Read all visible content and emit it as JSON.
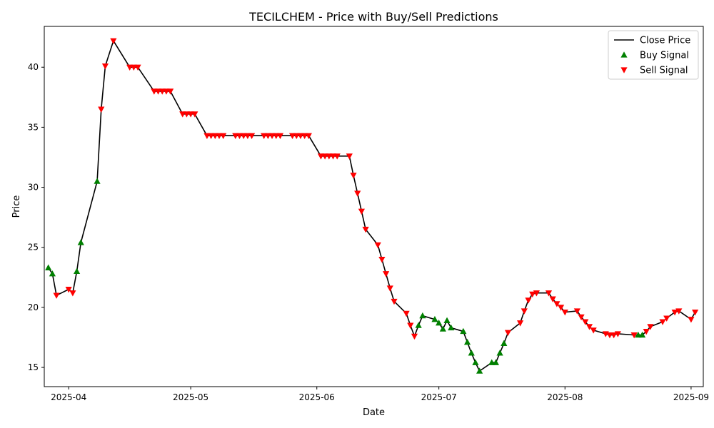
{
  "chart_data": {
    "type": "line",
    "title": "TECILCHEM - Price with Buy/Sell Predictions",
    "xlabel": "Date",
    "ylabel": "Price",
    "xlim": [
      "2025-03-26",
      "2025-09-04"
    ],
    "ylim": [
      13.4,
      43.4
    ],
    "grid": false,
    "legend_position": "upper right",
    "xticks": [
      "2025-04-01",
      "2025-05-01",
      "2025-06-01",
      "2025-07-01",
      "2025-08-01",
      "2025-09-01"
    ],
    "xtick_labels": [
      "2025-04",
      "2025-05",
      "2025-06",
      "2025-07",
      "2025-08",
      "2025-09"
    ],
    "yticks": [
      15,
      20,
      25,
      30,
      35,
      40
    ],
    "ytick_labels": [
      "15",
      "20",
      "25",
      "30",
      "35",
      "40"
    ],
    "legend": [
      "Close Price",
      "Buy Signal",
      "Sell Signal"
    ],
    "colors": {
      "close": "#000000",
      "buy": "#008000",
      "sell": "#ff0000"
    },
    "series": [
      {
        "name": "Close Price",
        "points": [
          [
            "2025-03-27",
            23.3
          ],
          [
            "2025-03-28",
            22.8
          ],
          [
            "2025-03-29",
            21.0
          ],
          [
            "2025-04-01",
            21.5
          ],
          [
            "2025-04-02",
            21.2
          ],
          [
            "2025-04-03",
            23.0
          ],
          [
            "2025-04-04",
            25.4
          ],
          [
            "2025-04-08",
            30.5
          ],
          [
            "2025-04-09",
            36.5
          ],
          [
            "2025-04-10",
            40.1
          ],
          [
            "2025-04-12",
            42.2
          ],
          [
            "2025-04-16",
            40.0
          ],
          [
            "2025-04-17",
            40.0
          ],
          [
            "2025-04-18",
            40.0
          ],
          [
            "2025-04-22",
            38.0
          ],
          [
            "2025-04-23",
            38.0
          ],
          [
            "2025-04-24",
            38.0
          ],
          [
            "2025-04-25",
            38.0
          ],
          [
            "2025-04-26",
            38.0
          ],
          [
            "2025-04-29",
            36.1
          ],
          [
            "2025-04-30",
            36.1
          ],
          [
            "2025-05-01",
            36.1
          ],
          [
            "2025-05-02",
            36.1
          ],
          [
            "2025-05-05",
            34.3
          ],
          [
            "2025-05-06",
            34.3
          ],
          [
            "2025-05-07",
            34.3
          ],
          [
            "2025-05-08",
            34.3
          ],
          [
            "2025-05-09",
            34.3
          ],
          [
            "2025-05-12",
            34.3
          ],
          [
            "2025-05-13",
            34.3
          ],
          [
            "2025-05-14",
            34.3
          ],
          [
            "2025-05-15",
            34.3
          ],
          [
            "2025-05-16",
            34.3
          ],
          [
            "2025-05-19",
            34.3
          ],
          [
            "2025-05-20",
            34.3
          ],
          [
            "2025-05-21",
            34.3
          ],
          [
            "2025-05-22",
            34.3
          ],
          [
            "2025-05-23",
            34.3
          ],
          [
            "2025-05-26",
            34.3
          ],
          [
            "2025-05-27",
            34.3
          ],
          [
            "2025-05-28",
            34.3
          ],
          [
            "2025-05-29",
            34.3
          ],
          [
            "2025-05-30",
            34.3
          ],
          [
            "2025-06-02",
            32.6
          ],
          [
            "2025-06-03",
            32.6
          ],
          [
            "2025-06-04",
            32.6
          ],
          [
            "2025-06-05",
            32.6
          ],
          [
            "2025-06-06",
            32.6
          ],
          [
            "2025-06-09",
            32.6
          ],
          [
            "2025-06-10",
            31.0
          ],
          [
            "2025-06-11",
            29.5
          ],
          [
            "2025-06-12",
            28.0
          ],
          [
            "2025-06-13",
            26.5
          ],
          [
            "2025-06-16",
            25.2
          ],
          [
            "2025-06-17",
            24.0
          ],
          [
            "2025-06-18",
            22.8
          ],
          [
            "2025-06-19",
            21.6
          ],
          [
            "2025-06-20",
            20.5
          ],
          [
            "2025-06-23",
            19.5
          ],
          [
            "2025-06-24",
            18.5
          ],
          [
            "2025-06-25",
            17.6
          ],
          [
            "2025-06-26",
            18.5
          ],
          [
            "2025-06-27",
            19.3
          ],
          [
            "2025-06-30",
            19.0
          ],
          [
            "2025-07-01",
            18.7
          ],
          [
            "2025-07-02",
            18.2
          ],
          [
            "2025-07-03",
            18.9
          ],
          [
            "2025-07-04",
            18.3
          ],
          [
            "2025-07-07",
            18.0
          ],
          [
            "2025-07-08",
            17.1
          ],
          [
            "2025-07-09",
            16.2
          ],
          [
            "2025-07-10",
            15.4
          ],
          [
            "2025-07-11",
            14.7
          ],
          [
            "2025-07-14",
            15.4
          ],
          [
            "2025-07-15",
            15.4
          ],
          [
            "2025-07-16",
            16.2
          ],
          [
            "2025-07-17",
            17.0
          ],
          [
            "2025-07-18",
            17.9
          ],
          [
            "2025-07-21",
            18.7
          ],
          [
            "2025-07-22",
            19.7
          ],
          [
            "2025-07-23",
            20.6
          ],
          [
            "2025-07-24",
            21.1
          ],
          [
            "2025-07-25",
            21.2
          ],
          [
            "2025-07-28",
            21.2
          ],
          [
            "2025-07-29",
            20.7
          ],
          [
            "2025-07-30",
            20.3
          ],
          [
            "2025-07-31",
            20.0
          ],
          [
            "2025-08-01",
            19.6
          ],
          [
            "2025-08-04",
            19.7
          ],
          [
            "2025-08-05",
            19.2
          ],
          [
            "2025-08-06",
            18.8
          ],
          [
            "2025-08-07",
            18.4
          ],
          [
            "2025-08-08",
            18.1
          ],
          [
            "2025-08-11",
            17.8
          ],
          [
            "2025-08-12",
            17.7
          ],
          [
            "2025-08-13",
            17.7
          ],
          [
            "2025-08-14",
            17.8
          ],
          [
            "2025-08-18",
            17.7
          ],
          [
            "2025-08-19",
            17.7
          ],
          [
            "2025-08-20",
            17.7
          ],
          [
            "2025-08-21",
            18.0
          ],
          [
            "2025-08-22",
            18.4
          ],
          [
            "2025-08-25",
            18.8
          ],
          [
            "2025-08-26",
            19.1
          ],
          [
            "2025-08-28",
            19.6
          ],
          [
            "2025-08-29",
            19.7
          ],
          [
            "2025-09-01",
            19.0
          ],
          [
            "2025-09-02",
            19.6
          ]
        ]
      },
      {
        "name": "Buy Signal",
        "points": [
          [
            "2025-03-27",
            23.3
          ],
          [
            "2025-03-28",
            22.8
          ],
          [
            "2025-04-03",
            23.0
          ],
          [
            "2025-04-04",
            25.4
          ],
          [
            "2025-04-08",
            30.5
          ],
          [
            "2025-06-26",
            18.5
          ],
          [
            "2025-06-27",
            19.3
          ],
          [
            "2025-06-30",
            19.0
          ],
          [
            "2025-07-01",
            18.7
          ],
          [
            "2025-07-02",
            18.2
          ],
          [
            "2025-07-03",
            18.9
          ],
          [
            "2025-07-04",
            18.3
          ],
          [
            "2025-07-07",
            18.0
          ],
          [
            "2025-07-08",
            17.1
          ],
          [
            "2025-07-09",
            16.2
          ],
          [
            "2025-07-10",
            15.4
          ],
          [
            "2025-07-11",
            14.7
          ],
          [
            "2025-07-14",
            15.4
          ],
          [
            "2025-07-15",
            15.4
          ],
          [
            "2025-07-16",
            16.2
          ],
          [
            "2025-07-17",
            17.0
          ],
          [
            "2025-08-19",
            17.7
          ],
          [
            "2025-08-20",
            17.7
          ]
        ]
      },
      {
        "name": "Sell Signal",
        "points": [
          [
            "2025-03-29",
            21.0
          ],
          [
            "2025-04-01",
            21.5
          ],
          [
            "2025-04-02",
            21.2
          ],
          [
            "2025-04-09",
            36.5
          ],
          [
            "2025-04-10",
            40.1
          ],
          [
            "2025-04-12",
            42.2
          ],
          [
            "2025-04-16",
            40.0
          ],
          [
            "2025-04-17",
            40.0
          ],
          [
            "2025-04-18",
            40.0
          ],
          [
            "2025-04-22",
            38.0
          ],
          [
            "2025-04-23",
            38.0
          ],
          [
            "2025-04-24",
            38.0
          ],
          [
            "2025-04-25",
            38.0
          ],
          [
            "2025-04-26",
            38.0
          ],
          [
            "2025-04-29",
            36.1
          ],
          [
            "2025-04-30",
            36.1
          ],
          [
            "2025-05-01",
            36.1
          ],
          [
            "2025-05-02",
            36.1
          ],
          [
            "2025-05-05",
            34.3
          ],
          [
            "2025-05-06",
            34.3
          ],
          [
            "2025-05-07",
            34.3
          ],
          [
            "2025-05-08",
            34.3
          ],
          [
            "2025-05-09",
            34.3
          ],
          [
            "2025-05-12",
            34.3
          ],
          [
            "2025-05-13",
            34.3
          ],
          [
            "2025-05-14",
            34.3
          ],
          [
            "2025-05-15",
            34.3
          ],
          [
            "2025-05-16",
            34.3
          ],
          [
            "2025-05-19",
            34.3
          ],
          [
            "2025-05-20",
            34.3
          ],
          [
            "2025-05-21",
            34.3
          ],
          [
            "2025-05-22",
            34.3
          ],
          [
            "2025-05-23",
            34.3
          ],
          [
            "2025-05-26",
            34.3
          ],
          [
            "2025-05-27",
            34.3
          ],
          [
            "2025-05-28",
            34.3
          ],
          [
            "2025-05-29",
            34.3
          ],
          [
            "2025-05-30",
            34.3
          ],
          [
            "2025-06-02",
            32.6
          ],
          [
            "2025-06-03",
            32.6
          ],
          [
            "2025-06-04",
            32.6
          ],
          [
            "2025-06-05",
            32.6
          ],
          [
            "2025-06-06",
            32.6
          ],
          [
            "2025-06-09",
            32.6
          ],
          [
            "2025-06-10",
            31.0
          ],
          [
            "2025-06-11",
            29.5
          ],
          [
            "2025-06-12",
            28.0
          ],
          [
            "2025-06-13",
            26.5
          ],
          [
            "2025-06-16",
            25.2
          ],
          [
            "2025-06-17",
            24.0
          ],
          [
            "2025-06-18",
            22.8
          ],
          [
            "2025-06-19",
            21.6
          ],
          [
            "2025-06-20",
            20.5
          ],
          [
            "2025-06-23",
            19.5
          ],
          [
            "2025-06-24",
            18.5
          ],
          [
            "2025-06-25",
            17.6
          ],
          [
            "2025-07-18",
            17.9
          ],
          [
            "2025-07-21",
            18.7
          ],
          [
            "2025-07-22",
            19.7
          ],
          [
            "2025-07-23",
            20.6
          ],
          [
            "2025-07-24",
            21.1
          ],
          [
            "2025-07-25",
            21.2
          ],
          [
            "2025-07-28",
            21.2
          ],
          [
            "2025-07-29",
            20.7
          ],
          [
            "2025-07-30",
            20.3
          ],
          [
            "2025-07-31",
            20.0
          ],
          [
            "2025-08-01",
            19.6
          ],
          [
            "2025-08-04",
            19.7
          ],
          [
            "2025-08-05",
            19.2
          ],
          [
            "2025-08-06",
            18.8
          ],
          [
            "2025-08-07",
            18.4
          ],
          [
            "2025-08-08",
            18.1
          ],
          [
            "2025-08-11",
            17.8
          ],
          [
            "2025-08-12",
            17.7
          ],
          [
            "2025-08-13",
            17.7
          ],
          [
            "2025-08-14",
            17.8
          ],
          [
            "2025-08-18",
            17.7
          ],
          [
            "2025-08-21",
            18.0
          ],
          [
            "2025-08-22",
            18.4
          ],
          [
            "2025-08-25",
            18.8
          ],
          [
            "2025-08-26",
            19.1
          ],
          [
            "2025-08-28",
            19.6
          ],
          [
            "2025-08-29",
            19.7
          ],
          [
            "2025-09-01",
            19.0
          ],
          [
            "2025-09-02",
            19.6
          ]
        ]
      }
    ]
  }
}
